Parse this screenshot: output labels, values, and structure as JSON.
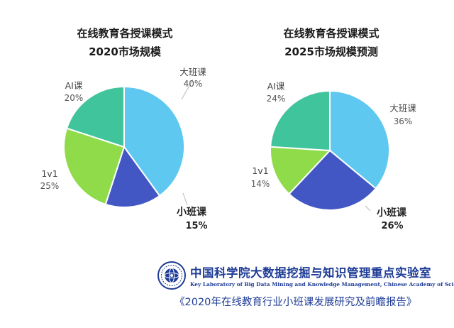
{
  "chart_data": [
    {
      "type": "pie",
      "title": "在线教育各授课模式",
      "subtitle": "2020市场规模",
      "slices": [
        {
          "label": "大班课",
          "value": 40,
          "value_label": "40%",
          "color": "#5ec8f0"
        },
        {
          "label": "小班课",
          "value": 15,
          "value_label": "15%",
          "color": "#4257c4"
        },
        {
          "label": "1v1",
          "value": 25,
          "value_label": "25%",
          "color": "#8fdb4a"
        },
        {
          "label": "AI课",
          "value": 20,
          "value_label": "20%",
          "color": "#3fc49b"
        }
      ]
    },
    {
      "type": "pie",
      "title": "在线教育各授课模式",
      "subtitle": "2025市场规模预测",
      "slices": [
        {
          "label": "大班课",
          "value": 36,
          "value_label": "36%",
          "color": "#5ec8f0"
        },
        {
          "label": "小班课",
          "value": 26,
          "value_label": "26%",
          "color": "#4257c4"
        },
        {
          "label": "1v1",
          "value": 14,
          "value_label": "14%",
          "color": "#8fdb4a"
        },
        {
          "label": "AI课",
          "value": 24,
          "value_label": "24%",
          "color": "#3fc49b"
        }
      ]
    }
  ],
  "footer": {
    "lab_name_cn": "中国科学院大数据挖掘与知识管理重点实验室",
    "lab_name_en": "Key Laboratory of Big Data Mining and Knowledge Management, Chinese Academy of Sciences",
    "report_title": "《2020年在线教育行业小班课发展研究及前瞻报告》",
    "logo_icon": "cas-emblem-icon"
  }
}
